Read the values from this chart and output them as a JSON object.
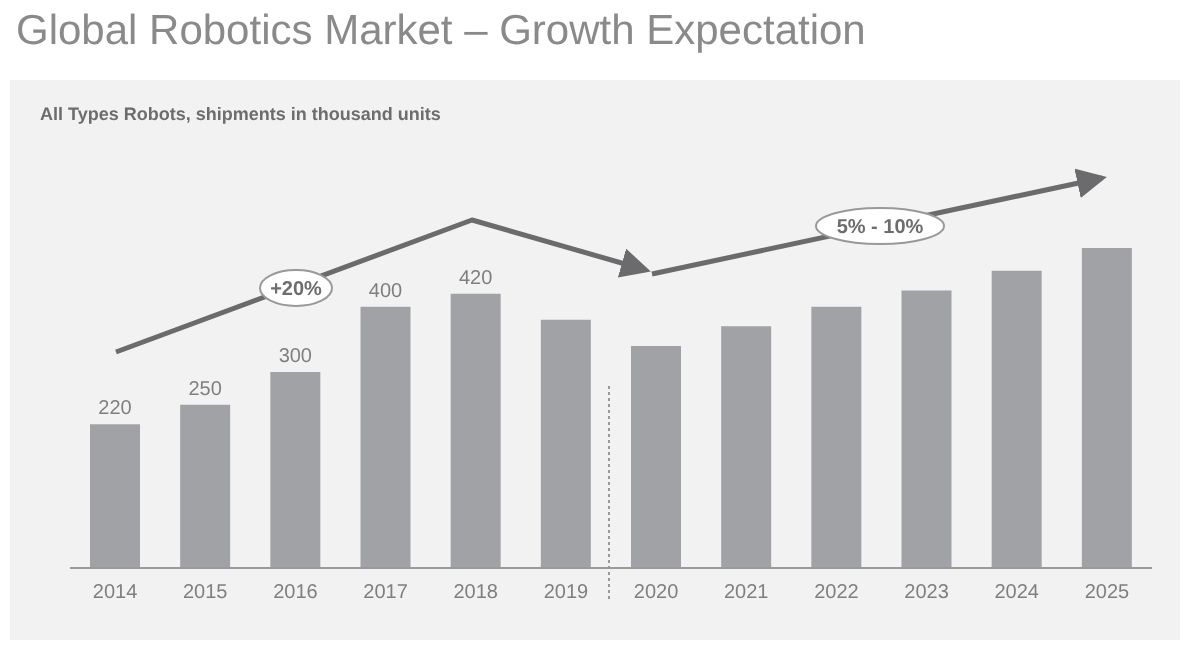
{
  "chart_data": {
    "type": "bar",
    "title": "Global Robotics Market – Growth Expectation",
    "subtitle": "All Types Robots, shipments in thousand units",
    "categories": [
      "2014",
      "2015",
      "2016",
      "2017",
      "2018",
      "2019",
      "2020",
      "2021",
      "2022",
      "2023",
      "2024",
      "2025"
    ],
    "values": [
      220,
      250,
      300,
      400,
      420,
      380,
      340,
      370,
      400,
      425,
      455,
      490
    ],
    "value_labels": [
      "220",
      "250",
      "300",
      "400",
      "420",
      null,
      null,
      null,
      null,
      null,
      null,
      null
    ],
    "color": "#a0a2a5",
    "grid": false,
    "legend": false,
    "ref_lines": [
      {
        "axis": "x",
        "value": "2020",
        "color": "#999999",
        "line_style": "dotted"
      }
    ],
    "annotations": [
      "+20%",
      "5% - 10%"
    ]
  }
}
